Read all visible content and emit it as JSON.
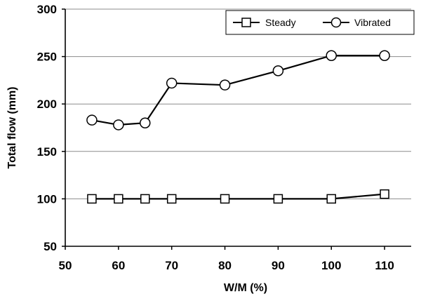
{
  "chart_data": {
    "type": "line",
    "title": "",
    "xlabel": "W/M (%)",
    "ylabel": "Total flow (mm)",
    "xlim": [
      50,
      115
    ],
    "ylim": [
      50,
      300
    ],
    "x_ticks": [
      "50",
      "60",
      "70",
      "80",
      "90",
      "100",
      "110"
    ],
    "y_ticks": [
      "50",
      "100",
      "150",
      "200",
      "250",
      "300"
    ],
    "grid": "horizontal",
    "legend_position": "top-right",
    "series": [
      {
        "name": "Steady",
        "marker": "square",
        "x": [
          55,
          60,
          65,
          70,
          80,
          90,
          100,
          110
        ],
        "y": [
          100,
          100,
          100,
          100,
          100,
          100,
          100,
          105
        ]
      },
      {
        "name": "Vibrated",
        "marker": "circle",
        "x": [
          55,
          60,
          65,
          70,
          80,
          90,
          100,
          110
        ],
        "y": [
          183,
          178,
          180,
          222,
          220,
          235,
          251,
          251
        ]
      }
    ]
  }
}
